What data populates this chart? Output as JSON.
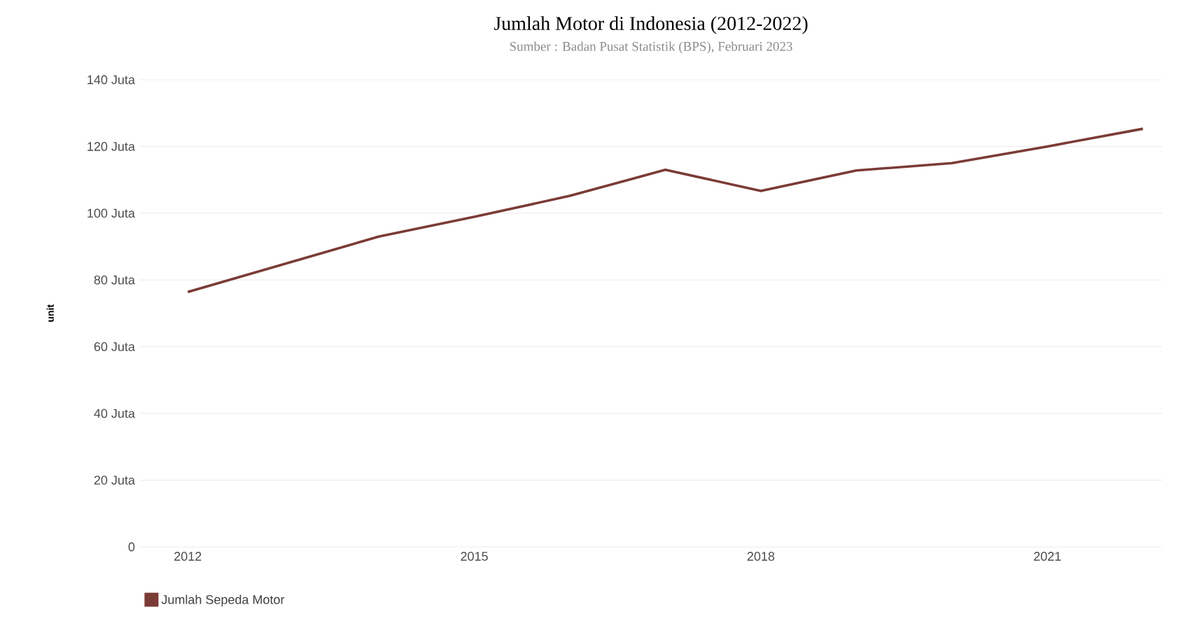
{
  "chart_data": {
    "type": "line",
    "title": "Jumlah Motor di Indonesia (2012-2022)",
    "subtitle": "Sumber : Badan Pusat Statistik (BPS), Februari 2023",
    "ylabel": "unit",
    "x": [
      2012,
      2013,
      2014,
      2015,
      2016,
      2017,
      2018,
      2019,
      2020,
      2021,
      2022
    ],
    "series": [
      {
        "name": "Jumlah Sepeda Motor",
        "color": "#7b3b36",
        "values": [
          76.4,
          84.7,
          93.0,
          98.9,
          105.2,
          113.0,
          106.7,
          112.8,
          115.0,
          120.0,
          125.3
        ]
      }
    ],
    "xlim": [
      2011.5,
      2022.2
    ],
    "ylim": [
      0,
      140
    ],
    "xticks": [
      2012,
      2015,
      2018,
      2021
    ],
    "yticks": [
      0,
      {
        "value": 20,
        "label": "20 Juta"
      },
      {
        "value": 40,
        "label": "40 Juta"
      },
      {
        "value": 60,
        "label": "60 Juta"
      },
      {
        "value": 80,
        "label": "80 Juta"
      },
      {
        "value": 100,
        "label": "100 Juta"
      },
      {
        "value": 120,
        "label": "120 Juta"
      },
      {
        "value": 140,
        "label": "140 Juta"
      }
    ],
    "grid": "y",
    "legend": "bottom left",
    "marker": "none",
    "line_style": "solid"
  }
}
